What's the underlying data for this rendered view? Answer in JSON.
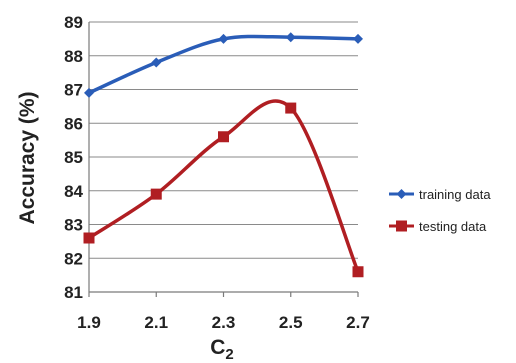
{
  "chart_data": {
    "type": "line",
    "x": [
      "1.9",
      "2.1",
      "2.3",
      "2.5",
      "2.7"
    ],
    "xlabel_main": "C",
    "xlabel_sub": "2",
    "ylabel": "Accuracy (%)",
    "ylim": [
      81,
      89
    ],
    "yticks": [
      "81",
      "82",
      "83",
      "84",
      "85",
      "86",
      "87",
      "88",
      "89"
    ],
    "grid": "horizontal",
    "legend_position": "right",
    "series": [
      {
        "name": "training data",
        "color": "#2a5db8",
        "marker": "diamond",
        "values": [
          86.9,
          87.8,
          88.5,
          88.55,
          88.5
        ]
      },
      {
        "name": "testing data",
        "color": "#b01e22",
        "marker": "square",
        "values": [
          82.6,
          83.9,
          85.6,
          86.45,
          81.6
        ]
      }
    ]
  }
}
